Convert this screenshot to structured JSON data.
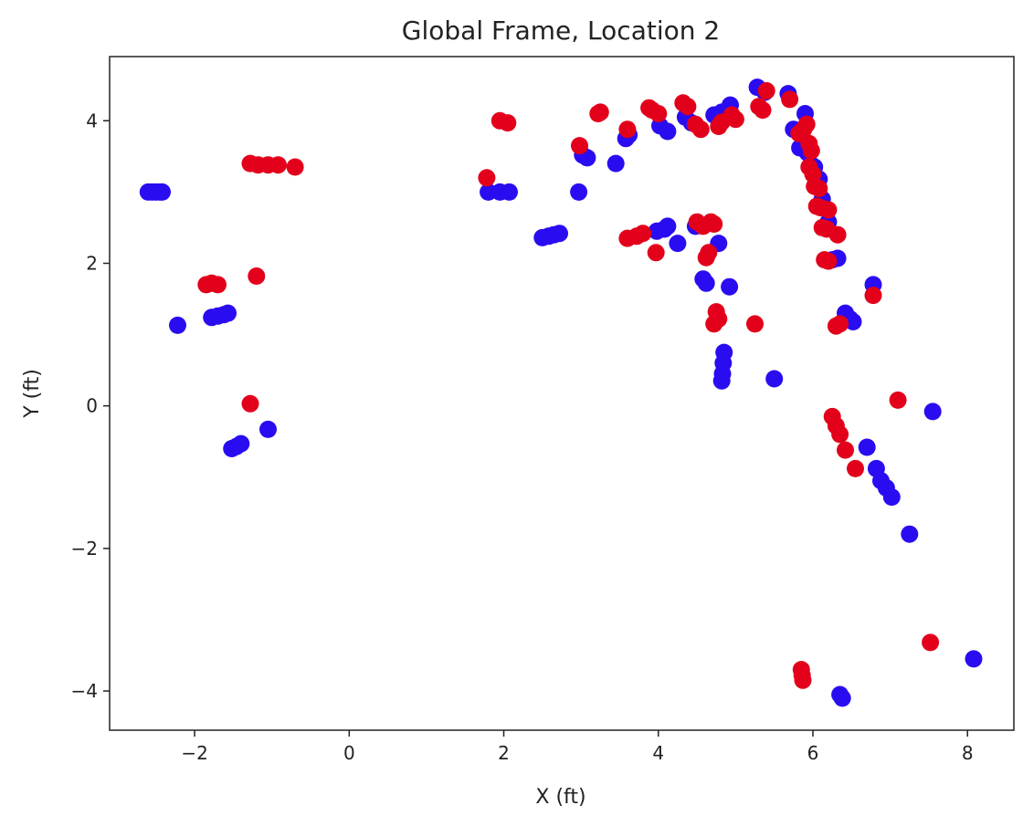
{
  "chart_data": {
    "type": "scatter",
    "title": "Global Frame, Location 2",
    "xlabel": "X (ft)",
    "ylabel": "Y (ft)",
    "xlim": [
      -3.1,
      8.6
    ],
    "ylim": [
      -4.55,
      4.9
    ],
    "xticks": [
      -2,
      0,
      2,
      4,
      6,
      8
    ],
    "yticks": [
      -4,
      -2,
      0,
      2,
      4
    ],
    "grid": false,
    "colors": {
      "blue": "#2a0cf0",
      "red": "#e3001b"
    },
    "series": [
      {
        "color": "#2a0cf0",
        "points": [
          [
            -2.6,
            3.0
          ],
          [
            -2.55,
            3.0
          ],
          [
            -2.5,
            3.0
          ],
          [
            -2.45,
            3.0
          ],
          [
            -2.42,
            3.0
          ],
          [
            -2.22,
            1.13
          ],
          [
            -1.78,
            1.24
          ],
          [
            -1.7,
            1.26
          ],
          [
            -1.62,
            1.28
          ],
          [
            -1.57,
            1.3
          ],
          [
            -1.52,
            -0.6
          ],
          [
            -1.46,
            -0.57
          ],
          [
            -1.4,
            -0.53
          ],
          [
            -1.05,
            -0.33
          ],
          [
            1.8,
            3.0
          ],
          [
            1.95,
            3.0
          ],
          [
            2.07,
            3.0
          ],
          [
            2.5,
            2.36
          ],
          [
            2.58,
            2.38
          ],
          [
            2.65,
            2.4
          ],
          [
            2.72,
            2.42
          ],
          [
            2.97,
            3.0
          ],
          [
            3.02,
            3.52
          ],
          [
            3.08,
            3.48
          ],
          [
            3.45,
            3.4
          ],
          [
            3.58,
            3.75
          ],
          [
            3.62,
            3.8
          ],
          [
            3.98,
            2.45
          ],
          [
            4.08,
            2.48
          ],
          [
            4.12,
            2.52
          ],
          [
            4.02,
            3.93
          ],
          [
            4.12,
            3.85
          ],
          [
            4.25,
            2.28
          ],
          [
            4.35,
            4.05
          ],
          [
            4.43,
            3.97
          ],
          [
            4.48,
            2.52
          ],
          [
            4.58,
            1.78
          ],
          [
            4.62,
            1.72
          ],
          [
            4.72,
            4.08
          ],
          [
            4.78,
            2.28
          ],
          [
            4.82,
            4.12
          ],
          [
            4.85,
            0.75
          ],
          [
            4.84,
            0.6
          ],
          [
            4.83,
            0.45
          ],
          [
            4.82,
            0.35
          ],
          [
            4.92,
            1.67
          ],
          [
            4.93,
            4.22
          ],
          [
            5.28,
            4.47
          ],
          [
            5.38,
            4.4
          ],
          [
            5.5,
            0.38
          ],
          [
            5.68,
            4.38
          ],
          [
            5.75,
            3.88
          ],
          [
            5.83,
            3.62
          ],
          [
            5.9,
            4.1
          ],
          [
            5.93,
            3.55
          ],
          [
            5.98,
            3.38
          ],
          [
            6.02,
            3.35
          ],
          [
            6.08,
            3.18
          ],
          [
            6.12,
            2.9
          ],
          [
            6.2,
            2.58
          ],
          [
            6.25,
            2.05
          ],
          [
            6.32,
            2.07
          ],
          [
            6.42,
            1.3
          ],
          [
            6.48,
            1.22
          ],
          [
            6.52,
            1.18
          ],
          [
            6.35,
            -4.05
          ],
          [
            6.38,
            -4.1
          ],
          [
            6.7,
            -0.58
          ],
          [
            6.78,
            1.7
          ],
          [
            6.82,
            -0.88
          ],
          [
            6.88,
            -1.05
          ],
          [
            6.95,
            -1.15
          ],
          [
            7.02,
            -1.28
          ],
          [
            7.25,
            -1.8
          ],
          [
            7.55,
            -0.08
          ],
          [
            8.08,
            -3.55
          ]
        ]
      },
      {
        "color": "#e3001b",
        "points": [
          [
            -1.28,
            3.4
          ],
          [
            -1.18,
            3.38
          ],
          [
            -1.05,
            3.38
          ],
          [
            -0.92,
            3.38
          ],
          [
            -0.7,
            3.35
          ],
          [
            -1.85,
            1.7
          ],
          [
            -1.78,
            1.72
          ],
          [
            -1.7,
            1.7
          ],
          [
            -1.2,
            1.82
          ],
          [
            -1.28,
            0.03
          ],
          [
            1.78,
            3.2
          ],
          [
            1.95,
            4.0
          ],
          [
            2.05,
            3.97
          ],
          [
            2.98,
            3.65
          ],
          [
            3.22,
            4.1
          ],
          [
            3.25,
            4.12
          ],
          [
            3.6,
            3.88
          ],
          [
            3.6,
            2.35
          ],
          [
            3.72,
            2.38
          ],
          [
            3.8,
            2.42
          ],
          [
            3.88,
            4.18
          ],
          [
            3.92,
            4.15
          ],
          [
            4.0,
            4.1
          ],
          [
            3.97,
            2.15
          ],
          [
            4.32,
            4.25
          ],
          [
            4.38,
            4.2
          ],
          [
            4.48,
            3.95
          ],
          [
            4.55,
            3.88
          ],
          [
            4.5,
            2.58
          ],
          [
            4.58,
            2.52
          ],
          [
            4.68,
            2.58
          ],
          [
            4.72,
            2.55
          ],
          [
            4.62,
            2.08
          ],
          [
            4.65,
            2.15
          ],
          [
            4.75,
            1.32
          ],
          [
            4.78,
            1.22
          ],
          [
            4.72,
            1.15
          ],
          [
            4.78,
            3.92
          ],
          [
            4.82,
            3.98
          ],
          [
            4.95,
            4.08
          ],
          [
            5.0,
            4.02
          ],
          [
            5.25,
            1.15
          ],
          [
            5.3,
            4.2
          ],
          [
            5.35,
            4.15
          ],
          [
            5.4,
            4.42
          ],
          [
            5.7,
            4.3
          ],
          [
            5.82,
            3.82
          ],
          [
            5.88,
            3.88
          ],
          [
            5.92,
            3.95
          ],
          [
            5.95,
            3.68
          ],
          [
            5.98,
            3.58
          ],
          [
            5.95,
            3.35
          ],
          [
            6.0,
            3.25
          ],
          [
            6.02,
            3.08
          ],
          [
            6.08,
            3.05
          ],
          [
            6.05,
            2.8
          ],
          [
            6.1,
            2.78
          ],
          [
            6.2,
            2.75
          ],
          [
            6.12,
            2.5
          ],
          [
            6.18,
            2.48
          ],
          [
            6.15,
            2.05
          ],
          [
            6.2,
            2.03
          ],
          [
            6.32,
            2.4
          ],
          [
            6.3,
            1.12
          ],
          [
            6.35,
            1.15
          ],
          [
            6.25,
            -0.15
          ],
          [
            6.3,
            -0.28
          ],
          [
            6.35,
            -0.4
          ],
          [
            6.42,
            -0.62
          ],
          [
            6.55,
            -0.88
          ],
          [
            6.78,
            1.55
          ],
          [
            7.1,
            0.08
          ],
          [
            7.52,
            -3.32
          ],
          [
            5.85,
            -3.7
          ],
          [
            5.86,
            -3.78
          ],
          [
            5.87,
            -3.85
          ]
        ]
      }
    ]
  }
}
